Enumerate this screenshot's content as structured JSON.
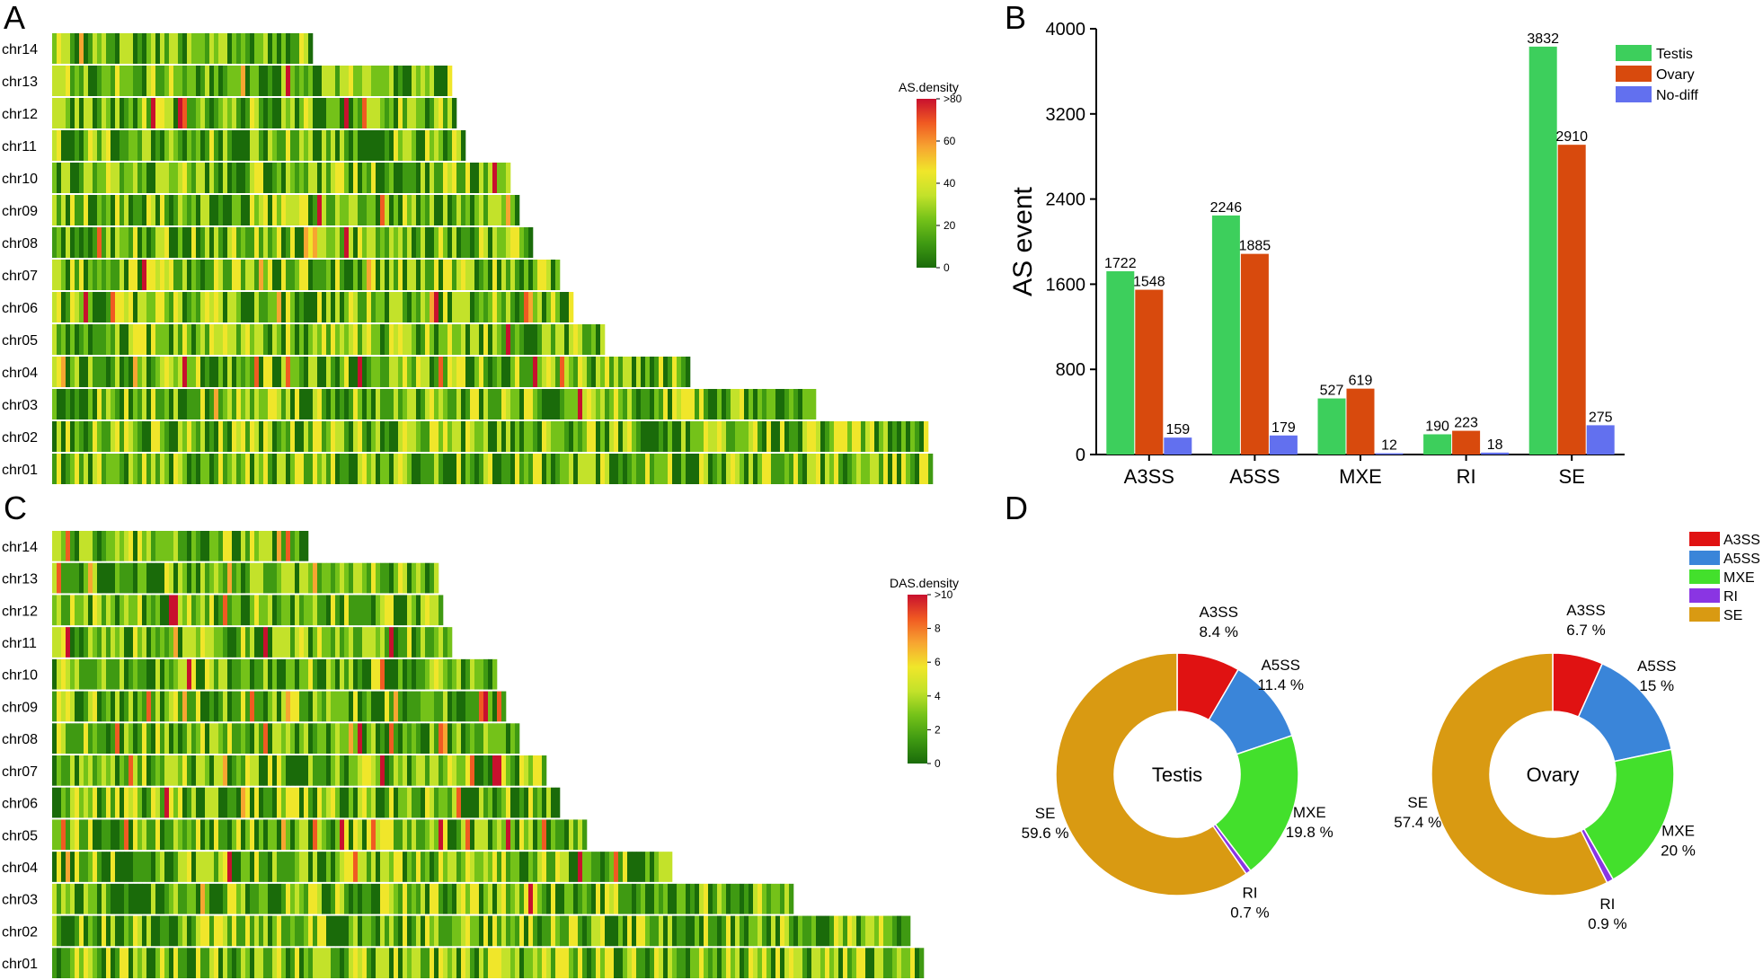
{
  "panels": {
    "A": {
      "letter": "A"
    },
    "B": {
      "letter": "B"
    },
    "C": {
      "letter": "C"
    },
    "D": {
      "letter": "D"
    }
  },
  "chart_data": [
    {
      "panel": "A",
      "type": "heatmap",
      "rows": [
        "chr14",
        "chr13",
        "chr12",
        "chr11",
        "chr10",
        "chr09",
        "chr08",
        "chr07",
        "chr06",
        "chr05",
        "chr04",
        "chr03",
        "chr02",
        "chr01"
      ],
      "row_lengths": [
        0.3,
        0.458,
        0.463,
        0.472,
        0.522,
        0.534,
        0.547,
        0.578,
        0.595,
        0.63,
        0.727,
        0.87,
        0.996,
        1.0
      ],
      "legend_title": "AS.density",
      "legend_ticks": [
        "0",
        "20",
        "40",
        "60",
        ">80"
      ],
      "value_range": [
        0,
        80
      ],
      "colors": [
        "#1a6b0a",
        "#3f9a12",
        "#74c219",
        "#c3e22a",
        "#f0e62a",
        "#f7a531",
        "#f05a22",
        "#c8102e"
      ]
    },
    {
      "panel": "B",
      "type": "bar",
      "categories": [
        "A3SS",
        "A5SS",
        "MXE",
        "RI",
        "SE"
      ],
      "series": [
        {
          "name": "Testis",
          "values": [
            1722,
            2246,
            527,
            190,
            3832
          ],
          "color": "#3dcf5c"
        },
        {
          "name": "Ovary",
          "values": [
            1548,
            1885,
            619,
            223,
            2910
          ],
          "color": "#d84a0d"
        },
        {
          "name": "No-diff",
          "values": [
            159,
            179,
            12,
            18,
            275
          ],
          "color": "#6270ef"
        }
      ],
      "value_labels": [
        [
          "1722",
          "2246",
          "527",
          "190",
          "3832"
        ],
        [
          "1548",
          "1885",
          "619",
          "223",
          "2910"
        ],
        [
          "159",
          "179",
          "12",
          "18",
          "275"
        ]
      ],
      "ylabel": "AS event",
      "ylim": [
        0,
        4000
      ],
      "yticks": [
        0,
        800,
        1600,
        2400,
        3200,
        4000
      ],
      "ytick_labels": [
        "0",
        "800",
        "1600",
        "2400",
        "3200",
        "4000"
      ],
      "legend_position": "top-right"
    },
    {
      "panel": "C",
      "type": "heatmap",
      "rows": [
        "chr14",
        "chr13",
        "chr12",
        "chr11",
        "chr10",
        "chr09",
        "chr08",
        "chr07",
        "chr06",
        "chr05",
        "chr04",
        "chr03",
        "chr02",
        "chr01"
      ],
      "row_lengths": [
        0.296,
        0.445,
        0.451,
        0.46,
        0.509,
        0.522,
        0.535,
        0.566,
        0.582,
        0.616,
        0.711,
        0.851,
        0.983,
        1.0
      ],
      "legend_title": "DAS.density",
      "legend_ticks": [
        "0",
        "2",
        "4",
        "6",
        "8",
        ">10"
      ],
      "value_range": [
        0,
        10
      ],
      "colors": [
        "#1a6b0a",
        "#3f9a12",
        "#74c219",
        "#c3e22a",
        "#f0e62a",
        "#f7a531",
        "#f05a22",
        "#c8102e"
      ]
    },
    {
      "panel": "D",
      "type": "pie",
      "legend": [
        {
          "name": "A3SS",
          "color": "#e01212"
        },
        {
          "name": "A5SS",
          "color": "#3a85d9"
        },
        {
          "name": "MXE",
          "color": "#43e02c"
        },
        {
          "name": "RI",
          "color": "#8a35e3"
        },
        {
          "name": "SE",
          "color": "#d99a12"
        }
      ],
      "pies": [
        {
          "center_label": "Testis",
          "slices": [
            {
              "name": "A3SS",
              "value": 8.4,
              "label": "A3SS",
              "pct": "8.4 %"
            },
            {
              "name": "A5SS",
              "value": 11.4,
              "label": "A5SS",
              "pct": "11.4 %"
            },
            {
              "name": "MXE",
              "value": 19.8,
              "label": "MXE",
              "pct": "19.8 %"
            },
            {
              "name": "RI",
              "value": 0.7,
              "label": "RI",
              "pct": "0.7 %"
            },
            {
              "name": "SE",
              "value": 59.6,
              "label": "SE",
              "pct": "59.6 %"
            }
          ]
        },
        {
          "center_label": "Ovary",
          "slices": [
            {
              "name": "A3SS",
              "value": 6.7,
              "label": "A3SS",
              "pct": "6.7 %"
            },
            {
              "name": "A5SS",
              "value": 15,
              "label": "A5SS",
              "pct": "15 %"
            },
            {
              "name": "MXE",
              "value": 20,
              "label": "MXE",
              "pct": "20 %"
            },
            {
              "name": "RI",
              "value": 0.9,
              "label": "RI",
              "pct": "0.9 %"
            },
            {
              "name": "SE",
              "value": 57.4,
              "label": "SE",
              "pct": "57.4 %"
            }
          ]
        }
      ]
    }
  ]
}
